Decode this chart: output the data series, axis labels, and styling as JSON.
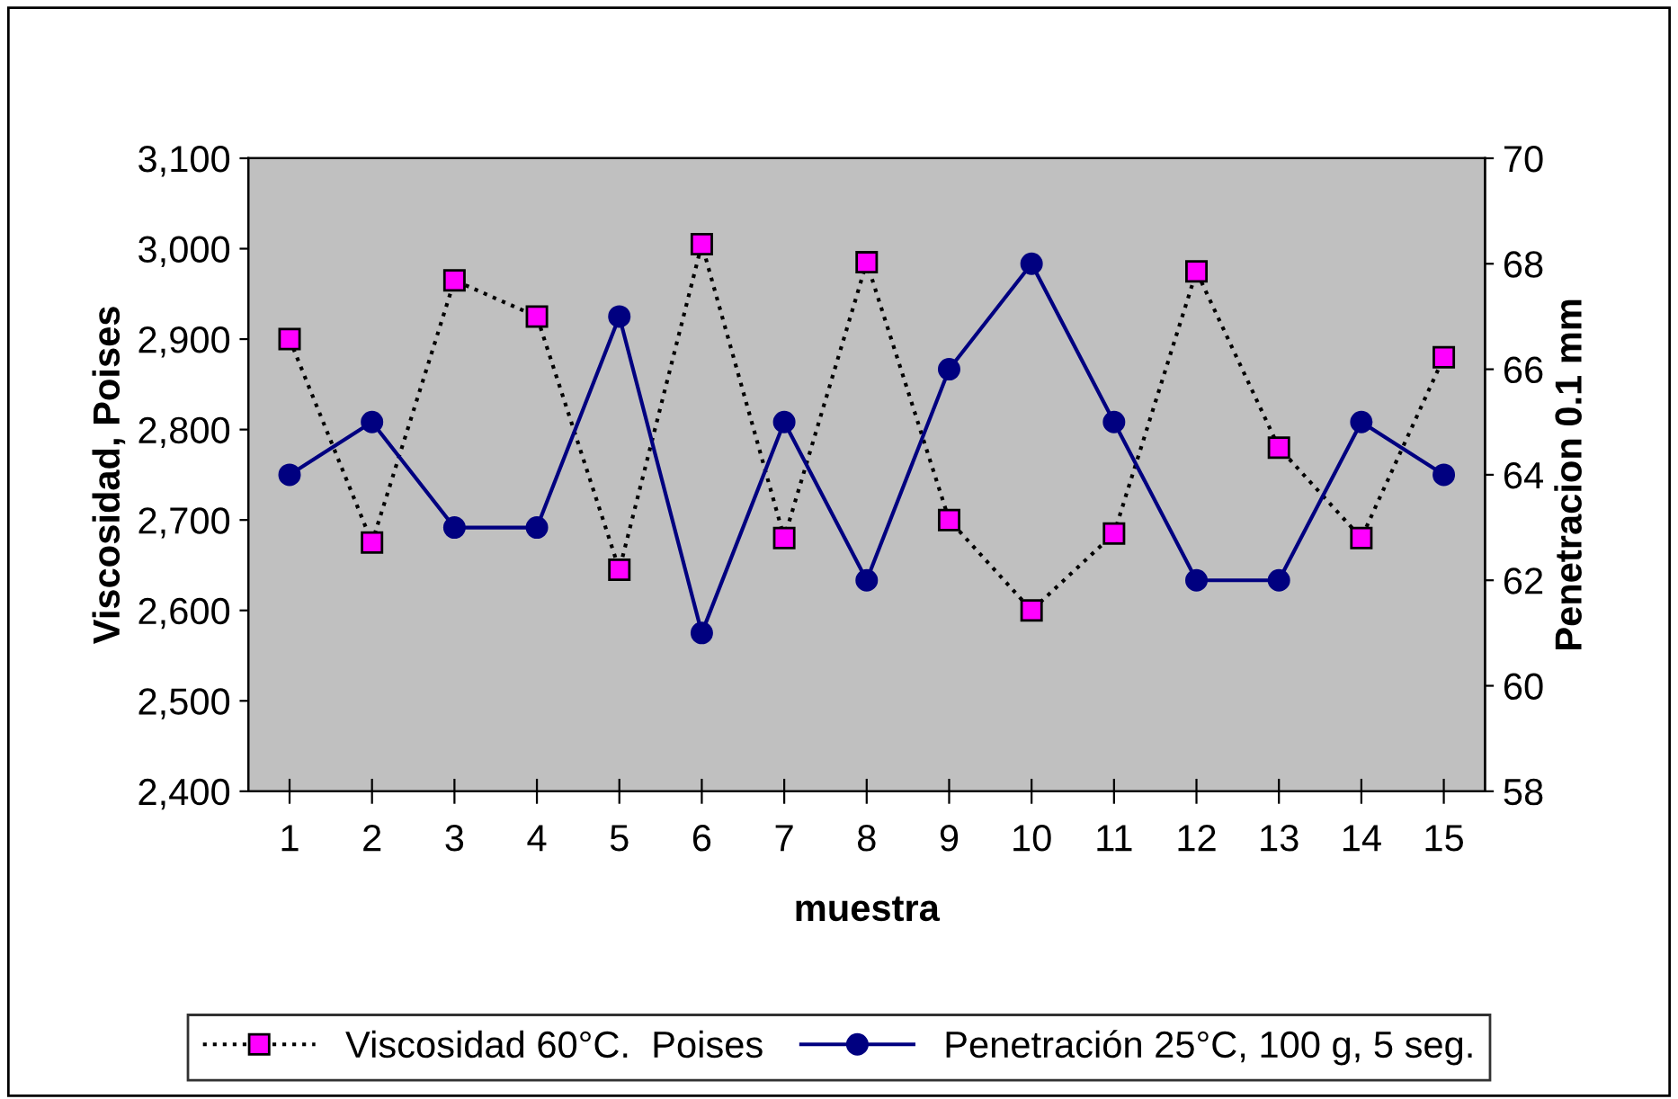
{
  "chart_data": {
    "type": "line",
    "xlabel": "muestra",
    "ylabel": "Viscosidad, Poises",
    "y2label": "Penetracion 0.1 mm",
    "categories": [
      "1",
      "2",
      "3",
      "4",
      "5",
      "6",
      "7",
      "8",
      "9",
      "10",
      "11",
      "12",
      "13",
      "14",
      "15"
    ],
    "series": [
      {
        "name": "Viscosidad 60°C.  Poises",
        "color": "#ff00ff",
        "marker": "square",
        "line_style": "dotted",
        "values": [
          2900,
          2675,
          2965,
          2925,
          2645,
          3005,
          2680,
          2985,
          2700,
          2600,
          2685,
          2975,
          2780,
          2680,
          2880
        ]
      },
      {
        "name": "Penetración 25°C, 100 g, 5 seg.",
        "color": "#000080",
        "marker": "circle",
        "line_style": "solid",
        "axis": "y2",
        "values": [
          64,
          65,
          63,
          63,
          67,
          61,
          65,
          62,
          66,
          68,
          65,
          62,
          62,
          65,
          64
        ]
      }
    ],
    "ylim": [
      2400,
      3100
    ],
    "yticks": [
      {
        "value": 2400,
        "label": "2,400"
      },
      {
        "value": 2500,
        "label": "2,500"
      },
      {
        "value": 2600,
        "label": "2,600"
      },
      {
        "value": 2700,
        "label": "2,700"
      },
      {
        "value": 2800,
        "label": "2,800"
      },
      {
        "value": 2900,
        "label": "2,900"
      },
      {
        "value": 3000,
        "label": "3,000"
      },
      {
        "value": 3100,
        "label": "3,100"
      }
    ],
    "y2lim": [
      58,
      70
    ],
    "y2ticks": [
      58,
      60,
      62,
      64,
      66,
      68,
      70
    ],
    "grid": false,
    "legend": "bottom"
  }
}
